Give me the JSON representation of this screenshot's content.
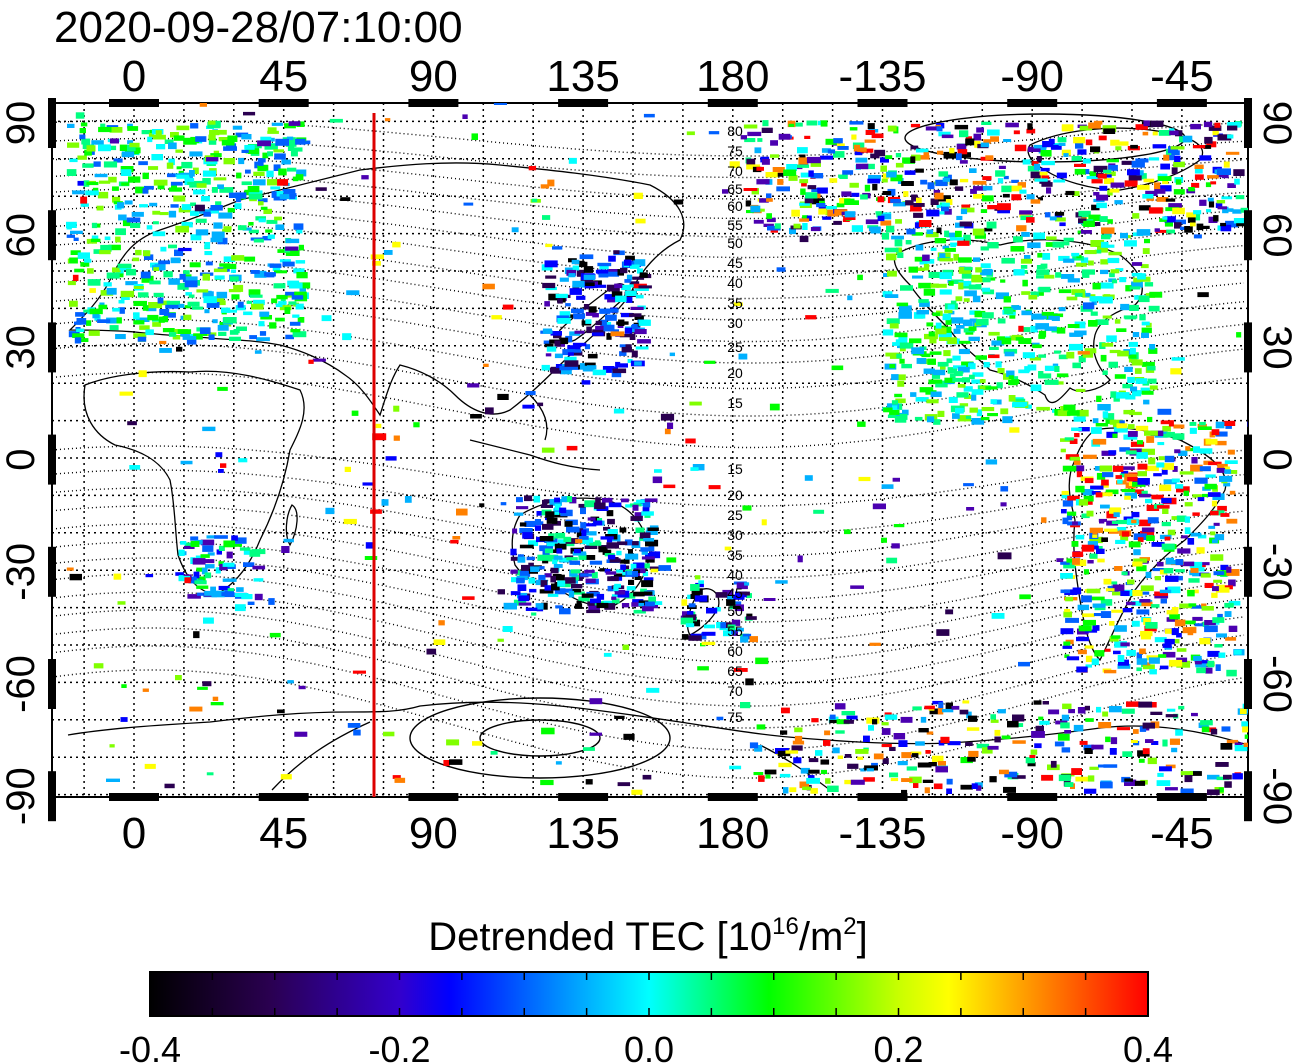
{
  "timestamp": "2020-09-28/07:10:00",
  "map": {
    "lon_ticks_top": [
      "0",
      "45",
      "90",
      "135",
      "180",
      "-135",
      "-90",
      "-45"
    ],
    "lon_ticks_bottom": [
      "0",
      "45",
      "90",
      "135",
      "180",
      "-135",
      "-90",
      "-45"
    ],
    "lat_ticks_left": [
      "90",
      "60",
      "30",
      "0",
      "-30",
      "-60",
      "-90"
    ],
    "lat_ticks_right": [
      "90",
      "60",
      "30",
      "0",
      "-30",
      "-60",
      "-90"
    ],
    "magnetic_lat_north": [
      "80",
      "75",
      "70",
      "65",
      "60",
      "55",
      "50",
      "45",
      "40",
      "35",
      "30",
      "25",
      "20",
      "15"
    ],
    "magnetic_lat_south": [
      "15",
      "20",
      "25",
      "30",
      "35",
      "40",
      "45",
      "50",
      "55",
      "60",
      "65",
      "70",
      "75"
    ],
    "marker_line_color": "#dd0000",
    "marker_longitude": 72
  },
  "colorbar": {
    "title_prefix": "Detrended TEC  [10",
    "title_sup1": "16",
    "title_mid": "/m",
    "title_sup2": "2",
    "title_suffix": "]",
    "ticks": [
      "-0.4",
      "-0.2",
      "0.0",
      "0.2",
      "0.4"
    ],
    "range": [
      -0.4,
      0.4
    ],
    "colors": [
      "#000000",
      "#3a0060",
      "#0000ff",
      "#00ffff",
      "#00ff00",
      "#ffff00",
      "#ff0000"
    ]
  }
}
